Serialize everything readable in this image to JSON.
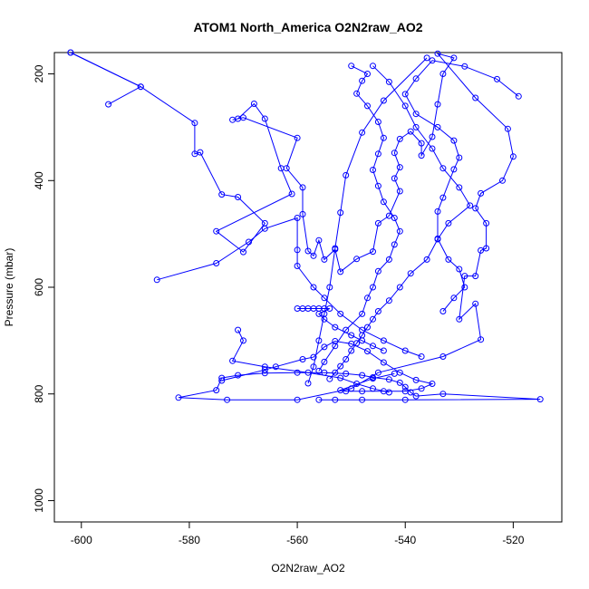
{
  "chart_data": {
    "type": "line",
    "title": "ATOM1 North_America O2N2raw_AO2",
    "xlabel": "O2N2raw_AO2",
    "ylabel": "Pressure (mbar)",
    "xlim": [
      -605,
      -511
    ],
    "ylim": [
      1040,
      160
    ],
    "y_reversed": true,
    "x_ticks": [
      -600,
      -580,
      -560,
      -540,
      -520
    ],
    "y_ticks": [
      200,
      400,
      600,
      800,
      1000
    ],
    "grid": false,
    "legend": "none",
    "series": [
      {
        "color": "#0000ff",
        "marker": "open-circle",
        "points": [
          [
            -602,
            160
          ],
          [
            -589,
            224
          ],
          [
            -579,
            292
          ],
          [
            -579,
            350
          ],
          [
            -578,
            347
          ],
          [
            -574,
            426
          ],
          [
            -571,
            431
          ],
          [
            -566,
            480
          ],
          [
            -570,
            534
          ],
          [
            -575,
            495
          ],
          [
            -561,
            425
          ],
          [
            -563,
            377
          ],
          [
            -566,
            284
          ],
          [
            -568,
            256
          ],
          [
            -571,
            284
          ],
          [
            -572,
            286
          ],
          [
            -570,
            282
          ],
          [
            -560,
            320
          ],
          [
            -562,
            377
          ],
          [
            -559,
            413
          ],
          [
            -559,
            463
          ],
          [
            -558,
            532
          ],
          [
            -557,
            541
          ],
          [
            -556,
            512
          ],
          [
            -555,
            548
          ],
          [
            -553,
            529
          ],
          [
            -552,
            571
          ],
          [
            -549,
            547
          ],
          [
            -546,
            533
          ],
          [
            -545,
            480
          ],
          [
            -543,
            466
          ],
          [
            -541,
            420
          ],
          [
            -542,
            396
          ],
          [
            -541,
            375
          ],
          [
            -542,
            348
          ],
          [
            -541,
            322
          ],
          [
            -539,
            308
          ],
          [
            -537,
            330
          ],
          [
            -537,
            353
          ],
          [
            -535,
            318
          ],
          [
            -534,
            257
          ],
          [
            -533,
            200
          ],
          [
            -531,
            170
          ],
          [
            -534,
            162
          ],
          [
            -527,
            245
          ],
          [
            -521,
            303
          ],
          [
            -520,
            355
          ],
          [
            -522,
            400
          ],
          [
            -526,
            424
          ],
          [
            -527,
            452
          ],
          [
            -525,
            480
          ],
          [
            -525,
            527
          ],
          [
            -526,
            531
          ],
          [
            -527,
            579
          ],
          [
            -529,
            579
          ],
          [
            -530,
            660
          ],
          [
            -527,
            631
          ],
          [
            -526,
            698
          ],
          [
            -533,
            730
          ],
          [
            -545,
            760
          ],
          [
            -550,
            790
          ],
          [
            -560,
            811
          ],
          [
            -573,
            811
          ],
          [
            -582,
            807
          ],
          [
            -575,
            793
          ],
          [
            -574,
            770
          ],
          [
            -571,
            765
          ],
          [
            -566,
            761
          ],
          [
            -560,
            760
          ],
          [
            -555,
            760
          ],
          [
            -551,
            762
          ],
          [
            -548,
            765
          ],
          [
            -546,
            769
          ],
          [
            -543,
            773
          ],
          [
            -541,
            779
          ],
          [
            -540,
            787
          ],
          [
            -539,
            797
          ],
          [
            -538,
            804
          ],
          [
            -533,
            800
          ],
          [
            -515,
            810
          ],
          [
            -540,
            811
          ],
          [
            -548,
            811
          ],
          [
            -553,
            811
          ],
          [
            -556,
            811
          ]
        ]
      },
      {
        "color": "#0000ff",
        "marker": "open-circle",
        "points": [
          [
            -595,
            257
          ],
          [
            -589,
            224
          ],
          [
            -602,
            160
          ]
        ]
      },
      {
        "color": "#0000ff",
        "marker": "open-circle",
        "points": [
          [
            -546,
            185
          ],
          [
            -543,
            215
          ],
          [
            -540,
            260
          ],
          [
            -538,
            300
          ],
          [
            -535,
            340
          ],
          [
            -533,
            377
          ],
          [
            -530,
            413
          ],
          [
            -528,
            447
          ],
          [
            -532,
            480
          ],
          [
            -534,
            510
          ],
          [
            -536,
            548
          ],
          [
            -539,
            574
          ],
          [
            -541,
            600
          ],
          [
            -543,
            625
          ],
          [
            -545,
            645
          ],
          [
            -546,
            660
          ],
          [
            -547,
            675
          ],
          [
            -548,
            690
          ],
          [
            -549,
            705
          ],
          [
            -550,
            719
          ],
          [
            -551,
            735
          ],
          [
            -552,
            748
          ],
          [
            -553,
            760
          ],
          [
            -554,
            772
          ]
        ]
      },
      {
        "color": "#0000ff",
        "marker": "open-circle",
        "points": [
          [
            -560,
            640
          ],
          [
            -559,
            640
          ],
          [
            -558,
            640
          ],
          [
            -557,
            640
          ],
          [
            -556,
            640
          ],
          [
            -555,
            640
          ],
          [
            -554,
            640
          ],
          [
            -556,
            650
          ],
          [
            -555,
            660
          ],
          [
            -553,
            675
          ],
          [
            -550,
            690
          ],
          [
            -548,
            700
          ],
          [
            -546,
            710
          ],
          [
            -544,
            719
          ]
        ]
      },
      {
        "color": "#0000ff",
        "marker": "open-circle",
        "points": [
          [
            -536,
            170
          ],
          [
            -544,
            250
          ],
          [
            -548,
            310
          ],
          [
            -551,
            390
          ],
          [
            -552,
            460
          ],
          [
            -553,
            527
          ],
          [
            -554,
            600
          ],
          [
            -555,
            650
          ],
          [
            -556,
            700
          ],
          [
            -557,
            749
          ],
          [
            -558,
            780
          ]
        ]
      },
      {
        "color": "#0000ff",
        "marker": "open-circle",
        "points": [
          [
            -550,
            185
          ],
          [
            -547,
            200
          ],
          [
            -548,
            213
          ],
          [
            -549,
            237
          ],
          [
            -547,
            260
          ],
          [
            -545,
            290
          ],
          [
            -544,
            320
          ],
          [
            -545,
            350
          ],
          [
            -546,
            380
          ],
          [
            -545,
            410
          ],
          [
            -544,
            440
          ],
          [
            -542,
            470
          ],
          [
            -541,
            495
          ],
          [
            -542,
            520
          ],
          [
            -543,
            548
          ],
          [
            -545,
            570
          ],
          [
            -546,
            600
          ],
          [
            -547,
            620
          ],
          [
            -548,
            650
          ],
          [
            -551,
            680
          ],
          [
            -553,
            710
          ],
          [
            -555,
            740
          ],
          [
            -556,
            757
          ]
        ]
      },
      {
        "color": "#0000ff",
        "marker": "open-circle",
        "points": [
          [
            -574,
            775
          ],
          [
            -566,
            755
          ],
          [
            -564,
            749
          ],
          [
            -559,
            735
          ],
          [
            -557,
            731
          ],
          [
            -555,
            712
          ],
          [
            -553,
            701
          ],
          [
            -550,
            706
          ],
          [
            -547,
            720
          ],
          [
            -544,
            741
          ],
          [
            -541,
            760
          ],
          [
            -538,
            774
          ],
          [
            -535,
            781
          ],
          [
            -537,
            790
          ],
          [
            -540,
            795
          ],
          [
            -544,
            795
          ],
          [
            -548,
            795
          ],
          [
            -551,
            795
          ],
          [
            -552,
            793
          ],
          [
            -546,
            771
          ],
          [
            -542,
            762
          ]
        ]
      },
      {
        "color": "#0000ff",
        "marker": "open-circle",
        "points": [
          [
            -519,
            242
          ],
          [
            -523,
            210
          ],
          [
            -529,
            186
          ],
          [
            -535,
            175
          ],
          [
            -538,
            209
          ],
          [
            -540,
            238
          ],
          [
            -538,
            275
          ],
          [
            -534,
            300
          ],
          [
            -531,
            325
          ],
          [
            -530,
            357
          ],
          [
            -531,
            379
          ],
          [
            -533,
            432
          ],
          [
            -534,
            458
          ],
          [
            -534,
            509
          ],
          [
            -532,
            548
          ],
          [
            -530,
            566
          ],
          [
            -529,
            600
          ],
          [
            -531,
            620
          ],
          [
            -533,
            645
          ]
        ]
      },
      {
        "color": "#0000ff",
        "marker": "open-circle",
        "points": [
          [
            -586,
            586
          ],
          [
            -575,
            555
          ],
          [
            -569,
            515
          ],
          [
            -566,
            490
          ],
          [
            -560,
            470
          ],
          [
            -560,
            530
          ],
          [
            -560,
            560
          ],
          [
            -557,
            600
          ],
          [
            -555,
            620
          ],
          [
            -552,
            650
          ],
          [
            -548,
            680
          ],
          [
            -544,
            700
          ],
          [
            -540,
            719
          ],
          [
            -537,
            730
          ]
        ]
      },
      {
        "color": "#0000ff",
        "marker": "open-circle",
        "points": [
          [
            -571,
            680
          ],
          [
            -570,
            700
          ],
          [
            -572,
            738
          ],
          [
            -566,
            749
          ],
          [
            -558,
            760
          ],
          [
            -552,
            770
          ],
          [
            -549,
            781
          ],
          [
            -546,
            790
          ],
          [
            -543,
            797
          ]
        ]
      }
    ]
  }
}
